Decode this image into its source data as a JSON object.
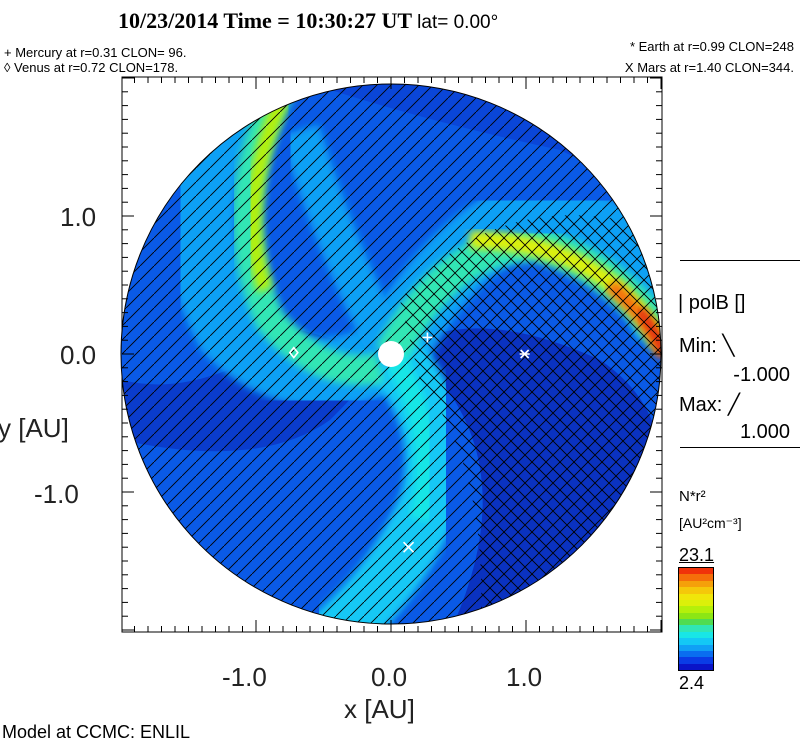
{
  "header": {
    "title": "10/23/2014 Time = 10:30:27 UT",
    "lat": "lat= 0.00°"
  },
  "planets_legend": {
    "mercury": "+ Mercury at r=0.31 CLON= 96.",
    "venus": "◊ Venus at r=0.72 CLON=178.",
    "earth": "* Earth at  r=0.99 CLON=248",
    "mars": "X Mars at r=1.40 CLON=344."
  },
  "footer": "Model at CCMC: ENLIL",
  "polb_legend": {
    "label": "| polB []",
    "min_label": "Min: ╲",
    "min_value": "-1.000",
    "max_label": "Max: ╱",
    "max_value": "1.000"
  },
  "colorbar": {
    "title": "N*r²",
    "units": "[AU²cm⁻³]",
    "max": "23.1",
    "min": "2.4",
    "colors": [
      "#0a14c8",
      "#0a3ce6",
      "#0a6ef0",
      "#10a0f5",
      "#14c8f5",
      "#18e6e6",
      "#30e6b4",
      "#50dc50",
      "#8ce614",
      "#b4f00a",
      "#dcf00a",
      "#f0e60a",
      "#f5c80a",
      "#f5a00a",
      "#f56e0a",
      "#f0320a"
    ]
  },
  "chart_data": {
    "type": "heatmap",
    "title": "10/23/2014 Time = 10:30:27 UT lat= 0.00°",
    "xlabel": "x [AU]",
    "ylabel": "y [AU]",
    "xlim": [
      -2,
      2
    ],
    "ylim": [
      -2,
      2
    ],
    "xticks": [
      "-1.0",
      "0.0",
      "1.0"
    ],
    "yticks": [
      "1.0",
      "0.0",
      "-1.0"
    ],
    "xtick_values": [
      -1,
      0,
      1
    ],
    "ytick_values": [
      1,
      0,
      -1
    ],
    "variable": "N*r^2",
    "units": "AU^2 cm^-3",
    "color_range": [
      2.4,
      23.1
    ],
    "overlay": "polB hatching (min -1.000, max 1.000)",
    "planets": [
      {
        "name": "Mercury",
        "symbol": "+",
        "r": 0.31,
        "clon": 96,
        "x": 0.27,
        "y": 0.12
      },
      {
        "name": "Venus",
        "symbol": "◊",
        "r": 0.72,
        "clon": 178,
        "x": -0.72,
        "y": 0.01
      },
      {
        "name": "Earth",
        "symbol": "*",
        "r": 0.99,
        "clon": 248,
        "x": 0.99,
        "y": 0.0
      },
      {
        "name": "Mars",
        "symbol": "X",
        "r": 1.4,
        "clon": 344,
        "x": 0.13,
        "y": -1.4
      }
    ]
  }
}
